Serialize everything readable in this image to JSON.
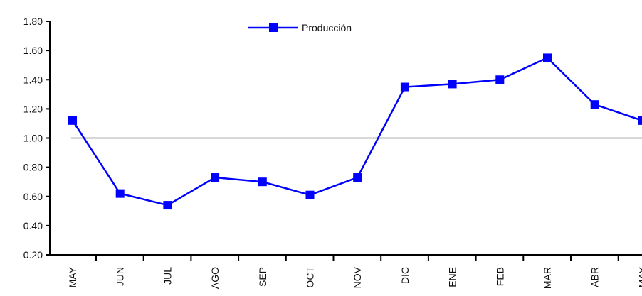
{
  "chart_data": {
    "type": "line",
    "categories": [
      "MAY",
      "JUN",
      "JUL",
      "AGO",
      "SEP",
      "OCT",
      "NOV",
      "DIC",
      "ENE",
      "FEB",
      "MAR",
      "ABR",
      "MAY"
    ],
    "series": [
      {
        "name": "Producción",
        "values": [
          1.12,
          0.62,
          0.54,
          0.73,
          0.7,
          0.61,
          0.73,
          1.35,
          1.37,
          1.4,
          1.55,
          1.23,
          1.12
        ],
        "color": "#0000ff"
      }
    ],
    "reference_line": {
      "value": 1.0,
      "color": "#b0b0b0"
    },
    "yticks": [
      "0.20",
      "0.40",
      "0.60",
      "0.80",
      "1.00",
      "1.20",
      "1.40",
      "1.60",
      "1.80"
    ],
    "ylim": [
      0.2,
      1.8
    ],
    "title": "",
    "xlabel": "",
    "ylabel": "",
    "legend": {
      "position": "top-center",
      "label": "Producción"
    },
    "grid": false
  }
}
